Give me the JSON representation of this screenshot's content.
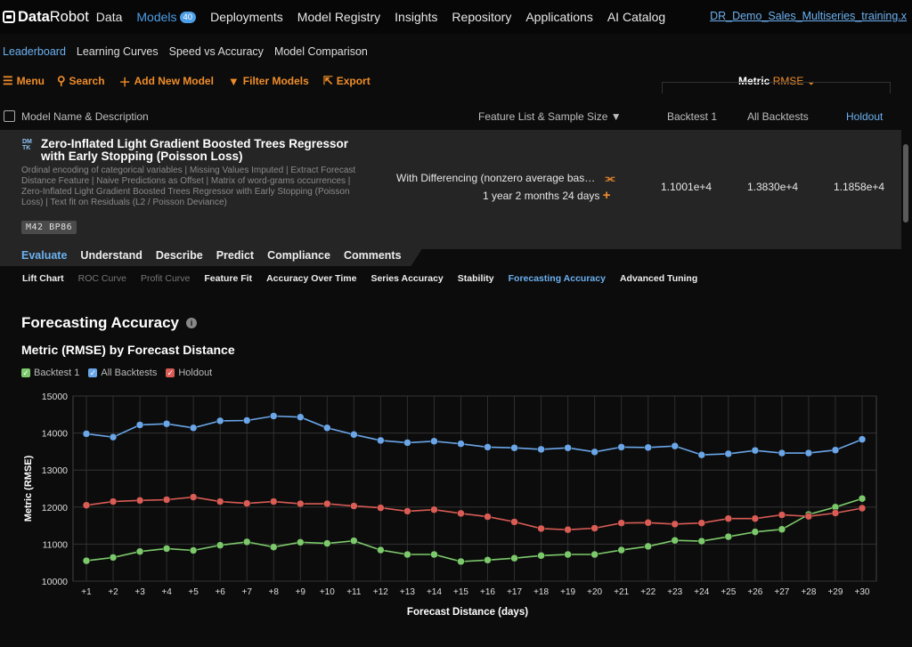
{
  "nav": {
    "logo": [
      "Data",
      "Robot"
    ],
    "items": [
      "Data",
      "Models",
      "Deployments",
      "Model Registry",
      "Insights",
      "Repository",
      "Applications",
      "AI Catalog"
    ],
    "models_badge": "40",
    "project": "DR_Demo_Sales_Multiseries_training.x"
  },
  "subnav": [
    "Leaderboard",
    "Learning Curves",
    "Speed vs Accuracy",
    "Model Comparison"
  ],
  "toolbar": {
    "menu": "Menu",
    "search": "Search",
    "add": "Add New Model",
    "filter": "Filter Models",
    "export": "Export",
    "metric_label": "Metric",
    "metric_value": "RMSE"
  },
  "columns": {
    "name": "Model Name & Description",
    "feature": "Feature List & Sample Size",
    "backtest1": "Backtest 1",
    "all": "All Backtests",
    "holdout": "Holdout"
  },
  "model": {
    "badge": "DM TK",
    "title": "Zero-Inflated Light Gradient Boosted Trees Regressor with Early Stopping (Poisson Loss)",
    "description": "Ordinal encoding of categorical variables | Missing Values Imputed | Extract Forecast Distance Feature | Naive Predictions as Offset | Matrix of word-grams occurrences | Zero-Inflated Light Gradient Boosted Trees Regressor with Early Stopping (Poisson Loss) | Text fit on Residuals (L2 / Poisson Deviance)",
    "tags": "M42 BP86",
    "feature_list": "With Differencing (nonzero average bas…",
    "sample_size": "1 year 2 months 24 days",
    "backtest1": "1.1001e+4",
    "all_backtests": "1.3830e+4",
    "holdout": "1.1858e+4"
  },
  "tabs": [
    "Evaluate",
    "Understand",
    "Describe",
    "Predict",
    "Compliance",
    "Comments"
  ],
  "subtabs": [
    "Lift Chart",
    "ROC Curve",
    "Profit Curve",
    "Feature Fit",
    "Accuracy Over Time",
    "Series Accuracy",
    "Stability",
    "Forecasting Accuracy",
    "Advanced Tuning"
  ],
  "page_title": "Forecasting Accuracy",
  "chart_title": "Metric (RMSE) by Forecast Distance",
  "colors": {
    "accent": "#4d9ee8",
    "orange": "#f08d2a",
    "green": "#7cc96b",
    "blue": "#6aa6e8",
    "red": "#d95c55"
  },
  "chart_data": {
    "type": "line",
    "xlabel": "Forecast Distance (days)",
    "ylabel": "Metric (RMSE)",
    "ylim": [
      10000,
      15000
    ],
    "yticks": [
      10000,
      11000,
      12000,
      13000,
      14000,
      15000
    ],
    "legend_placement": "top-left",
    "x": [
      "+1",
      "+2",
      "+3",
      "+4",
      "+5",
      "+6",
      "+7",
      "+8",
      "+9",
      "+10",
      "+11",
      "+12",
      "+13",
      "+14",
      "+15",
      "+16",
      "+17",
      "+18",
      "+19",
      "+20",
      "+21",
      "+22",
      "+23",
      "+24",
      "+25",
      "+26",
      "+27",
      "+28",
      "+29",
      "+30"
    ],
    "series": [
      {
        "name": "Backtest 1",
        "color": "#7cc96b",
        "values": [
          10550,
          10640,
          10800,
          10880,
          10830,
          10970,
          11060,
          10920,
          11050,
          11020,
          11090,
          10840,
          10720,
          10720,
          10530,
          10570,
          10620,
          10690,
          10720,
          10720,
          10840,
          10940,
          11100,
          11080,
          11200,
          11330,
          11400,
          11800,
          12000,
          12230
        ]
      },
      {
        "name": "All Backtests",
        "color": "#6aa6e8",
        "values": [
          13980,
          13890,
          14220,
          14250,
          14140,
          14330,
          14340,
          14460,
          14430,
          14140,
          13960,
          13800,
          13740,
          13780,
          13710,
          13620,
          13600,
          13560,
          13600,
          13490,
          13620,
          13610,
          13650,
          13410,
          13440,
          13530,
          13460,
          13460,
          13540,
          13830
        ]
      },
      {
        "name": "Holdout",
        "color": "#d95c55",
        "values": [
          12050,
          12150,
          12180,
          12200,
          12270,
          12150,
          12100,
          12150,
          12090,
          12090,
          12030,
          11980,
          11890,
          11930,
          11830,
          11740,
          11600,
          11420,
          11390,
          11430,
          11570,
          11580,
          11540,
          11570,
          11690,
          11690,
          11790,
          11750,
          11840,
          11970
        ]
      }
    ]
  }
}
